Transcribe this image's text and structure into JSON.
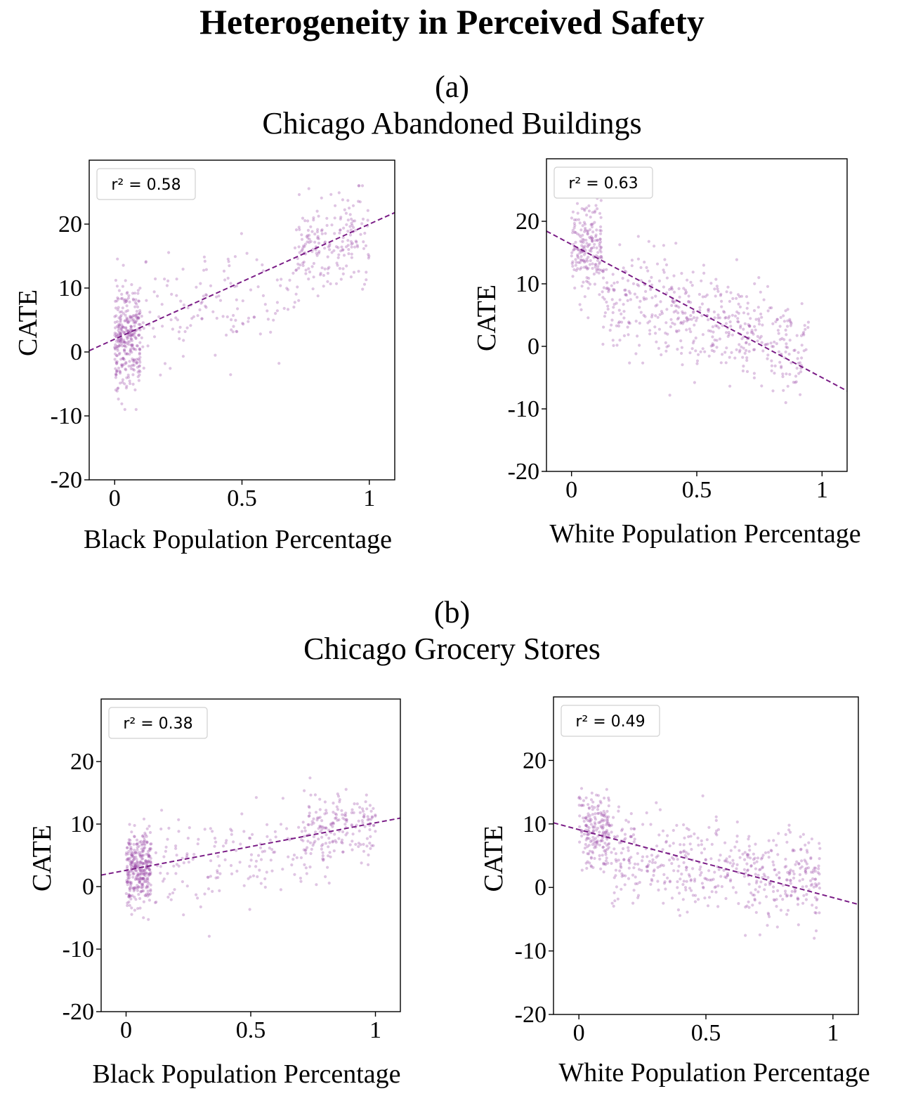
{
  "title": "Heterogeneity in Perceived Safety",
  "panels": [
    {
      "letter": "(a)",
      "subtitle": "Chicago Abandoned Buildings"
    },
    {
      "letter": "(b)",
      "subtitle": "Chicago Grocery Stores"
    }
  ],
  "colors": {
    "points": "#9b4aa8",
    "fit_line": "#7a1c86",
    "frame": "#000000"
  },
  "chart_data": [
    {
      "type": "scatter",
      "panel": "(a)",
      "xlabel": "Black Population Percentage",
      "ylabel": "CATE",
      "xlim": [
        -0.1,
        1.1
      ],
      "ylim": [
        -20,
        30
      ],
      "xticks": [
        0,
        0.5,
        1
      ],
      "xtick_labels": [
        "0",
        "0.5",
        "1"
      ],
      "yticks": [
        -20,
        -10,
        0,
        10,
        20
      ],
      "ytick_labels": [
        "-20",
        "-10",
        "0",
        "10",
        "20"
      ],
      "legend": "r² = 0.58",
      "legend_position": "top-left",
      "r2": 0.58,
      "fit": {
        "slope": 18,
        "intercept": 2.0
      },
      "clusters": [
        {
          "x_range": [
            0.0,
            0.1
          ],
          "y_center": 2,
          "y_spread": 9,
          "count": 330
        },
        {
          "x_range": [
            0.1,
            0.7
          ],
          "y_center": 6,
          "y_spread": 10,
          "count": 130
        },
        {
          "x_range": [
            0.7,
            1.0
          ],
          "y_center": 16,
          "y_spread": 9,
          "count": 200
        }
      ]
    },
    {
      "type": "scatter",
      "panel": "(a)",
      "xlabel": "White Population Percentage",
      "ylabel": "CATE",
      "xlim": [
        -0.1,
        1.1
      ],
      "ylim": [
        -20,
        30
      ],
      "xticks": [
        0,
        0.5,
        1
      ],
      "xtick_labels": [
        "0",
        "0.5",
        "1"
      ],
      "yticks": [
        -20,
        -10,
        0,
        10,
        20
      ],
      "ytick_labels": [
        "-20",
        "-10",
        "0",
        "10",
        "20"
      ],
      "legend": "r² = 0.63",
      "legend_position": "top-left",
      "r2": 0.63,
      "fit": {
        "slope": -21.3,
        "intercept": 16.3
      },
      "clusters": [
        {
          "x_range": [
            0.0,
            0.12
          ],
          "y_center": 17,
          "y_spread": 9,
          "count": 200
        },
        {
          "x_range": [
            0.12,
            0.95
          ],
          "y_center": 3,
          "y_spread": 10,
          "count": 500
        }
      ]
    },
    {
      "type": "scatter",
      "panel": "(b)",
      "xlabel": "Black Population Percentage",
      "ylabel": "CATE",
      "xlim": [
        -0.1,
        1.1
      ],
      "ylim": [
        -20,
        30
      ],
      "xticks": [
        0,
        0.5,
        1
      ],
      "xtick_labels": [
        "0",
        "0.5",
        "1"
      ],
      "yticks": [
        -20,
        -10,
        0,
        10,
        20
      ],
      "ytick_labels": [
        "-20",
        "-10",
        "0",
        "10",
        "20"
      ],
      "legend": "r² = 0.38",
      "legend_position": "top-left",
      "r2": 0.38,
      "fit": {
        "slope": 7.6,
        "intercept": 2.6
      },
      "clusters": [
        {
          "x_range": [
            0.0,
            0.1
          ],
          "y_center": 3,
          "y_spread": 7,
          "count": 330
        },
        {
          "x_range": [
            0.1,
            0.7
          ],
          "y_center": 4,
          "y_spread": 9,
          "count": 140
        },
        {
          "x_range": [
            0.7,
            1.0
          ],
          "y_center": 9,
          "y_spread": 7,
          "count": 200
        }
      ]
    },
    {
      "type": "scatter",
      "panel": "(b)",
      "xlabel": "White Population Percentage",
      "ylabel": "CATE",
      "xlim": [
        -0.1,
        1.1
      ],
      "ylim": [
        -20,
        30
      ],
      "xticks": [
        0,
        0.5,
        1
      ],
      "xtick_labels": [
        "0",
        "0.5",
        "1"
      ],
      "yticks": [
        -20,
        -10,
        0,
        10,
        20
      ],
      "ytick_labels": [
        "-20",
        "-10",
        "0",
        "10",
        "20"
      ],
      "legend": "r² = 0.49",
      "legend_position": "top-left",
      "r2": 0.49,
      "fit": {
        "slope": -10.7,
        "intercept": 9.1
      },
      "clusters": [
        {
          "x_range": [
            0.0,
            0.12
          ],
          "y_center": 9,
          "y_spread": 7,
          "count": 200
        },
        {
          "x_range": [
            0.12,
            0.95
          ],
          "y_center": 3,
          "y_spread": 8,
          "count": 500
        }
      ]
    }
  ]
}
